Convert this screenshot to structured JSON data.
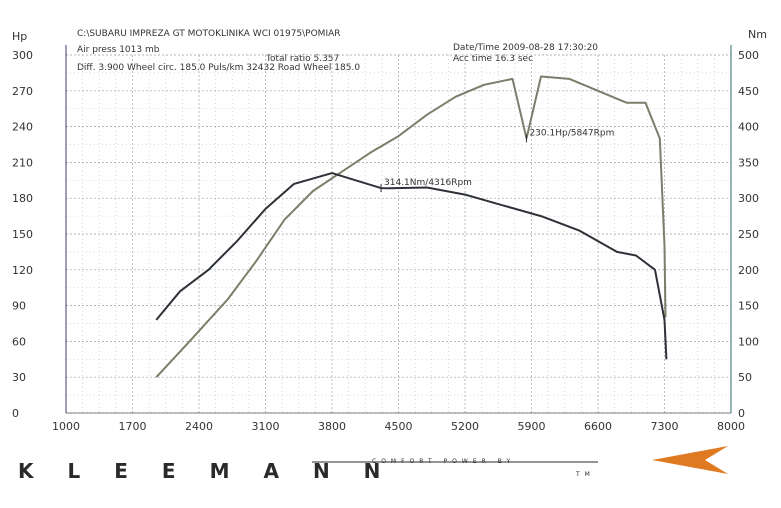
{
  "header": {
    "path": "C:\\SUBARU IMPREZA GT MOTOKLINIKA WCI 01975\\POMIAR",
    "air_press": "Air press 1013 mb",
    "total_ratio": "Total ratio 5.357",
    "diff_line": "Diff.   3.900  Wheel circ. 185.0  Puls/km  32432  Road Wheel 185.0",
    "datetime": "Date/Time  2009-08-28 17:30:20",
    "acc_time": "Acc time   16.3 sec"
  },
  "chart_data": {
    "type": "line",
    "xlim": [
      1000,
      8000
    ],
    "x_ticks": [
      1000,
      1700,
      2400,
      3100,
      3800,
      4500,
      5200,
      5900,
      6600,
      7300,
      8000
    ],
    "left_axis": {
      "label": "Hp",
      "range": [
        0,
        300
      ],
      "ticks": [
        0,
        30,
        60,
        90,
        120,
        150,
        180,
        210,
        240,
        270,
        300
      ]
    },
    "right_axis": {
      "label": "Nm",
      "range": [
        0,
        500
      ],
      "ticks": [
        0,
        50,
        100,
        150,
        200,
        250,
        300,
        350,
        400,
        450,
        500
      ]
    },
    "grid": true,
    "series": [
      {
        "axis": "left",
        "color": "#7d7d6b",
        "points": [
          [
            1950,
            30
          ],
          [
            2300,
            60
          ],
          [
            2700,
            95
          ],
          [
            3000,
            127
          ],
          [
            3300,
            162
          ],
          [
            3600,
            186
          ],
          [
            3900,
            202
          ],
          [
            4200,
            218
          ],
          [
            4500,
            232
          ],
          [
            4800,
            250
          ],
          [
            5100,
            265
          ],
          [
            5400,
            275
          ],
          [
            5847,
            230.1
          ],
          [
            5700,
            280
          ],
          [
            6000,
            282
          ],
          [
            6300,
            280
          ],
          [
            6600,
            270
          ],
          [
            6900,
            260
          ],
          [
            7100,
            260
          ],
          [
            7250,
            230
          ],
          [
            7300,
            140
          ],
          [
            7310,
            80
          ]
        ]
      },
      {
        "axis": "right",
        "color": "#2e3238",
        "points": [
          [
            1950,
            130
          ],
          [
            2200,
            170
          ],
          [
            2500,
            200
          ],
          [
            2800,
            240
          ],
          [
            3100,
            285
          ],
          [
            3400,
            320
          ],
          [
            3800,
            335
          ],
          [
            4316,
            314.1
          ],
          [
            4400,
            314
          ],
          [
            4800,
            315
          ],
          [
            5200,
            305
          ],
          [
            5600,
            290
          ],
          [
            6000,
            275
          ],
          [
            6400,
            255
          ],
          [
            6800,
            225
          ],
          [
            7000,
            220
          ],
          [
            7200,
            200
          ],
          [
            7300,
            130
          ],
          [
            7320,
            75
          ]
        ]
      }
    ],
    "annotations": [
      {
        "text": "230.1Hp/5847Rpm",
        "x": 5847,
        "value": 230.1,
        "axis": "left"
      },
      {
        "text": "314.1Nm/4316Rpm",
        "x": 4316,
        "value": 314.1,
        "axis": "right"
      }
    ]
  },
  "footer": {
    "brand": "KLEEMANN",
    "tagline": "COMFORT POWER BY",
    "tm": "TM",
    "accent_color": "#e07a22"
  }
}
